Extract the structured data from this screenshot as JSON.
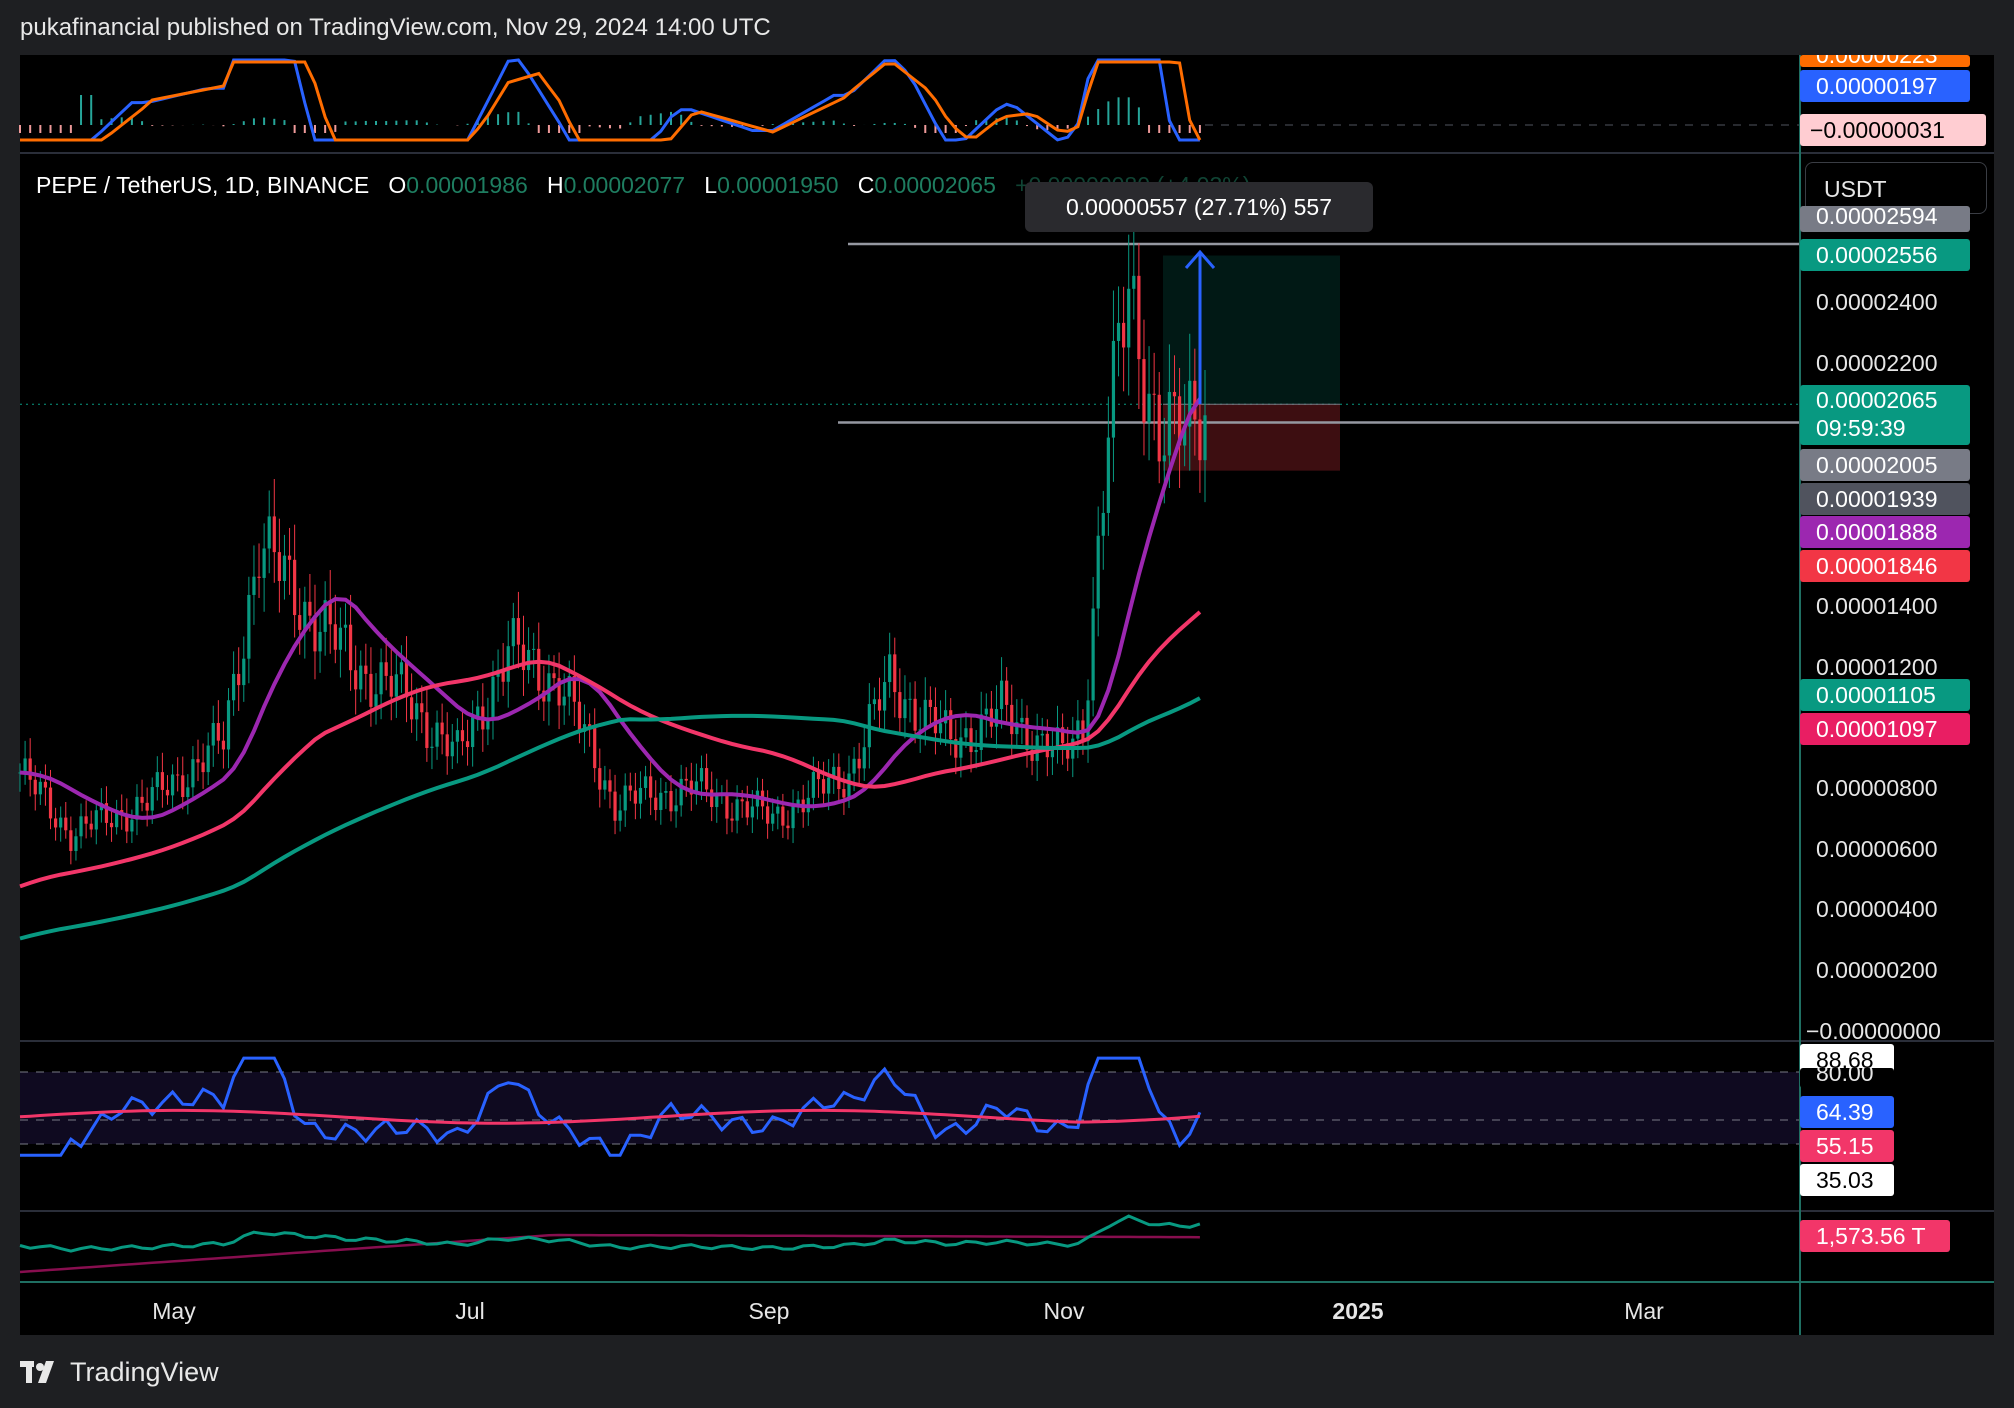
{
  "header": {
    "publish_line": "pukafinancial published on TradingView.com, Nov 29, 2024 14:00 UTC"
  },
  "legend": {
    "symbol": "PEPE / TetherUS, 1D, BINANCE",
    "o_label": "O",
    "o_value": "0.00001986",
    "h_label": "H",
    "h_value": "0.00002077",
    "l_label": "L",
    "l_value": "0.00001950",
    "c_label": "C",
    "c_value": "0.00002065",
    "change": "+0.00000080 (+4.03%)"
  },
  "measure_label": "0.00000557 (27.71%) 557",
  "currency": "USDT",
  "price_axis": {
    "ticks": [
      {
        "label": "0.00002400",
        "value": 2.4e-05
      },
      {
        "label": "0.00002200",
        "value": 2.2e-05
      },
      {
        "label": "0.00001400",
        "value": 1.4e-05
      },
      {
        "label": "0.00001200",
        "value": 1.2e-05
      },
      {
        "label": "0.00000800",
        "value": 8e-06
      },
      {
        "label": "0.00000600",
        "value": 6e-06
      },
      {
        "label": "0.00000400",
        "value": 4e-06
      },
      {
        "label": "0.00000200",
        "value": 2e-06
      },
      {
        "label": "−0.00000000",
        "value": 0.0
      }
    ],
    "price_tags": [
      {
        "label": "0.00002556",
        "value": 2.556e-05,
        "bg": "#089981",
        "fg": "#ffffff"
      },
      {
        "label": "0.00002065",
        "value": 2.065e-05,
        "bg": "#089981",
        "fg": "#ffffff"
      },
      {
        "label": "09:59:39",
        "value": 2.065e-05,
        "bg": "#089981",
        "fg": "#ffffff"
      },
      {
        "label": "0.00002005",
        "value": 2.005e-05,
        "bg": "#787b86",
        "fg": "#ffffff"
      },
      {
        "label": "0.00001939",
        "value": 1.939e-05,
        "bg": "#50535e",
        "fg": "#ffffff"
      },
      {
        "label": "0.00001888",
        "value": 1.888e-05,
        "bg": "#9c27b0",
        "fg": "#ffffff"
      },
      {
        "label": "0.00001846",
        "value": 1.846e-05,
        "bg": "#f23645",
        "fg": "#ffffff"
      },
      {
        "label": "0.00001105",
        "value": 1.105e-05,
        "bg": "#089981",
        "fg": "#ffffff"
      },
      {
        "label": "0.00001097",
        "value": 1.097e-05,
        "bg": "#e91e63",
        "fg": "#ffffff"
      }
    ],
    "partial_top_tag": "0.00002594"
  },
  "macd_panel": {
    "partial_top_label": "0.00000223",
    "labels": [
      {
        "label": "0.00000197",
        "bg": "#2962ff",
        "fg": "#ffffff"
      },
      {
        "label": "−0.00000031",
        "bg": "#ffcdd2",
        "fg": "#000000"
      }
    ]
  },
  "rsi_panel": {
    "labels": [
      {
        "label": "88.68",
        "bg": "#ffffff",
        "fg": "#000000"
      },
      {
        "label": "80.00",
        "bg": "#000000",
        "fg": "#e6e6e6"
      },
      {
        "label": "64.39",
        "bg": "#2962ff",
        "fg": "#ffffff"
      },
      {
        "label": "55.15",
        "bg": "#f23669",
        "fg": "#ffffff"
      },
      {
        "label": "35.03",
        "bg": "#ffffff",
        "fg": "#000000"
      }
    ]
  },
  "volume_panel": {
    "label": "1,573.56 T",
    "bg": "#f23669",
    "fg": "#ffffff"
  },
  "time_axis": {
    "labels": [
      {
        "label": "May",
        "bold": false
      },
      {
        "label": "Jul",
        "bold": false
      },
      {
        "label": "Sep",
        "bold": false
      },
      {
        "label": "Nov",
        "bold": false
      },
      {
        "label": "2025",
        "bold": true
      },
      {
        "label": "Mar",
        "bold": false
      }
    ]
  },
  "footer": {
    "brand": "TradingView"
  },
  "chart_data": [
    {
      "type": "candlestick",
      "title": "PEPE / TetherUS, 1D, BINANCE",
      "x_range": [
        "2024-04-10",
        "2024-11-29"
      ],
      "ylim": [
        0,
        2.65e-05
      ],
      "close_approx": [
        {
          "date": "2024-04-10",
          "close": 8.5e-06
        },
        {
          "date": "2024-04-20",
          "close": 6.5e-06
        },
        {
          "date": "2024-05-05",
          "close": 7.5e-06
        },
        {
          "date": "2024-05-20",
          "close": 9.5e-06
        },
        {
          "date": "2024-05-27",
          "close": 1.6e-05
        },
        {
          "date": "2024-06-05",
          "close": 1.4e-05
        },
        {
          "date": "2024-06-15",
          "close": 1.2e-05
        },
        {
          "date": "2024-06-25",
          "close": 1.1e-05
        },
        {
          "date": "2024-07-05",
          "close": 9e-06
        },
        {
          "date": "2024-07-15",
          "close": 1.25e-05
        },
        {
          "date": "2024-07-25",
          "close": 1.15e-05
        },
        {
          "date": "2024-08-05",
          "close": 7.5e-06
        },
        {
          "date": "2024-08-20",
          "close": 8e-06
        },
        {
          "date": "2024-09-05",
          "close": 7e-06
        },
        {
          "date": "2024-09-20",
          "close": 8.5e-06
        },
        {
          "date": "2024-09-28",
          "close": 1.15e-05
        },
        {
          "date": "2024-10-10",
          "close": 9.5e-06
        },
        {
          "date": "2024-10-20",
          "close": 1.05e-05
        },
        {
          "date": "2024-11-01",
          "close": 9e-06
        },
        {
          "date": "2024-11-05",
          "close": 1e-05
        },
        {
          "date": "2024-11-10",
          "close": 2e-05
        },
        {
          "date": "2024-11-14",
          "close": 2.4e-05
        },
        {
          "date": "2024-11-20",
          "close": 2e-05
        },
        {
          "date": "2024-11-25",
          "close": 1.95e-05
        },
        {
          "date": "2024-11-29",
          "close": 2.065e-05
        }
      ],
      "moving_averages": [
        {
          "name": "MA short",
          "color": "#9c27b0",
          "last": 1.888e-05
        },
        {
          "name": "MA mid",
          "color": "#f23669",
          "last": 1.097e-05
        },
        {
          "name": "MA long",
          "color": "#089981",
          "last": 1.105e-05
        }
      ],
      "levels": [
        2.594e-05,
        2.005e-05
      ],
      "long_position": {
        "entry": 2.065e-05,
        "target": 2.556e-05,
        "stop": 1.846e-05
      }
    },
    {
      "type": "line",
      "title": "",
      "series": [
        {
          "name": "",
          "last": 1.97e-06
        },
        {
          "name": "",
          "last": 2.23e-06
        }
      ],
      "histogram_last": -3.1e-07
    },
    {
      "type": "line",
      "title": "",
      "ylim": [
        0,
        100
      ],
      "bands": [
        80,
        35
      ],
      "series": [
        {
          "name": "",
          "last": 64.39
        },
        {
          "name": "",
          "last": 55.15
        }
      ],
      "max_value": 88.68
    },
    {
      "type": "line",
      "title": "",
      "series": [
        {
          "name": "",
          "last": 1573.56,
          "unit": "T"
        }
      ]
    }
  ]
}
